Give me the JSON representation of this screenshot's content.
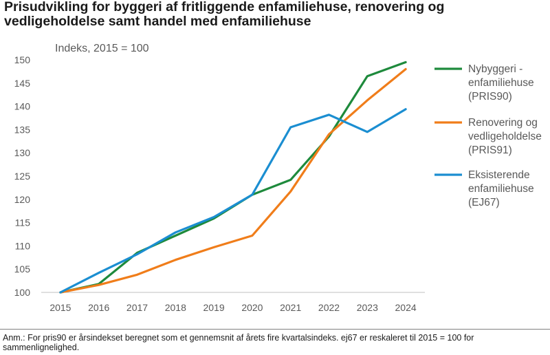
{
  "title_line1": "Prisudvikling for byggeri af fritliggende enfamiliehuse, renovering og",
  "title_line2": "vedligeholdelse samt handel med enfamiliehuse",
  "note": "Anm.: For pris90 er årsindekset beregnet som et gennemsnit af årets fire kvartalsindeks. ej67 er reskaleret til 2015 = 100 for sammenlignelighed.",
  "chart_data": {
    "type": "line",
    "title": "Prisudvikling for byggeri af fritliggende enfamiliehuse, renovering og vedligeholdelse samt handel med enfamiliehuse",
    "ylabel": "Indeks, 2015 = 100",
    "xlabel": "",
    "categories": [
      "2015",
      "2016",
      "2017",
      "2018",
      "2019",
      "2020",
      "2021",
      "2022",
      "2023",
      "2024"
    ],
    "ylim": [
      100,
      150
    ],
    "yticks": [
      "100",
      "105",
      "110",
      "115",
      "120",
      "125",
      "130",
      "135",
      "140",
      "145",
      "150"
    ],
    "grid": false,
    "legend_position": "right",
    "series": [
      {
        "name": "Nybyggeri - enfamiliehuse (PRIS90)",
        "legend_lines": [
          "Nybyggeri -",
          "enfamiliehuse",
          "(PRIS90)"
        ],
        "color": "#1e8a3c",
        "values": [
          100,
          101.8,
          108.5,
          112.2,
          115.9,
          121.0,
          124.2,
          133.5,
          146.5,
          149.5
        ]
      },
      {
        "name": "Renovering og vedligeholdelse (PRIS91)",
        "legend_lines": [
          "Renovering og",
          "vedligeholdelse",
          "(PRIS91)"
        ],
        "color": "#f07d1a",
        "values": [
          100,
          101.6,
          103.8,
          107.0,
          109.7,
          112.2,
          121.7,
          134.0,
          141.3,
          148.0
        ]
      },
      {
        "name": "Eksisterende enfamiliehuse (EJ67)",
        "legend_lines": [
          "Eksisterende",
          "enfamiliehuse",
          "(EJ67)"
        ],
        "color": "#1b8ed1",
        "values": [
          100,
          104.2,
          108.2,
          112.9,
          116.2,
          121.0,
          135.5,
          138.2,
          134.5,
          139.4
        ]
      }
    ]
  }
}
